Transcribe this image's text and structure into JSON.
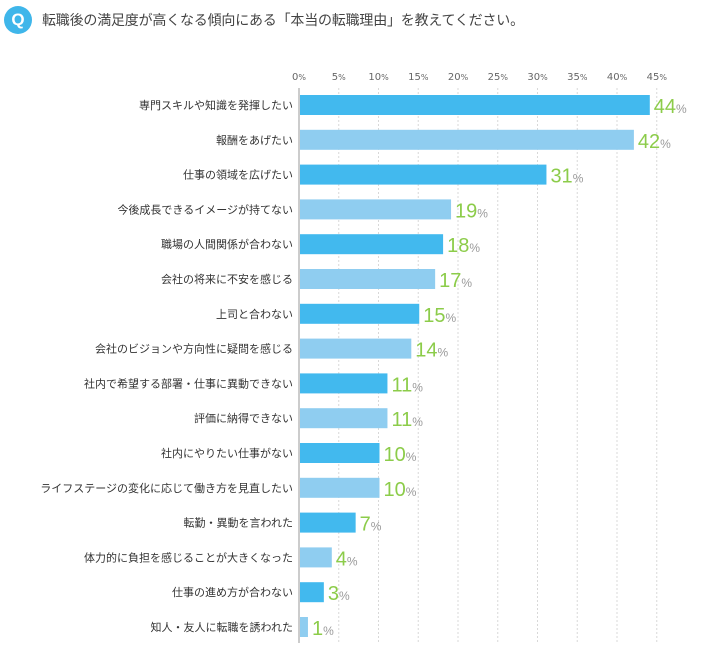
{
  "question": {
    "badge": "Q",
    "text": "転職後の満足度が高くなる傾向にある「本当の転職理由」を教えてください。"
  },
  "colors": {
    "dark_bar": "#42b9ee",
    "light_bar": "#8fcdf0",
    "value_text": "#8ccc4a",
    "badge": "#3fb6ea"
  },
  "chart_data": {
    "type": "bar",
    "orientation": "horizontal",
    "title": "",
    "xlabel": "",
    "ylabel": "",
    "xlim": [
      0,
      45
    ],
    "ticks": [
      0,
      5,
      10,
      15,
      20,
      25,
      30,
      35,
      40,
      45
    ],
    "tick_unit": "%",
    "value_unit": "%",
    "grid": true,
    "categories": [
      "専門スキルや知識を発揮したい",
      "報酬をあげたい",
      "仕事の領域を広げたい",
      "今後成長できるイメージが持てない",
      "職場の人間関係が合わない",
      "会社の将来に不安を感じる",
      "上司と合わない",
      "会社のビジョンや方向性に疑問を感じる",
      "社内で希望する部署・仕事に異動できない",
      "評価に納得できない",
      "社内にやりたい仕事がない",
      "ライフステージの変化に応じて働き方を見直したい",
      "転勤・異動を言われた",
      "体力的に負担を感じることが大きくなった",
      "仕事の進め方が合わない",
      "知人・友人に転職を誘われた"
    ],
    "values": [
      44,
      42,
      31,
      19,
      18,
      17,
      15,
      14,
      11,
      11,
      10,
      10,
      7,
      4,
      3,
      1
    ]
  }
}
